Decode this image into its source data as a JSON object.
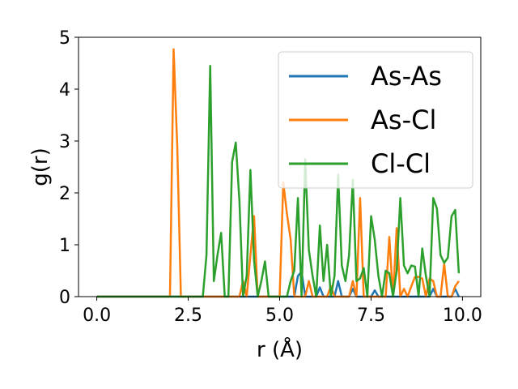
{
  "chart_data": {
    "type": "line",
    "title": "",
    "xlabel": "r (Å)",
    "ylabel": "g(r)",
    "xlim": [
      -0.5,
      10.5
    ],
    "ylim": [
      0,
      5
    ],
    "xticks": [
      "0.0",
      "2.5",
      "5.0",
      "7.5",
      "10.0"
    ],
    "xtick_values": [
      0,
      2.5,
      5,
      7.5,
      10
    ],
    "yticks": [
      "0",
      "1",
      "2",
      "3",
      "4",
      "5"
    ],
    "ytick_values": [
      0,
      1,
      2,
      3,
      4,
      5
    ],
    "grid": false,
    "legend_position": "top-right",
    "series": [
      {
        "name": "As-As",
        "color": "#1f77b4",
        "points": [
          [
            0,
            0
          ],
          [
            5.4,
            0
          ],
          [
            5.5,
            0.4
          ],
          [
            5.6,
            0.48
          ],
          [
            5.7,
            0
          ],
          [
            6.0,
            0
          ],
          [
            6.1,
            0.18
          ],
          [
            6.2,
            0
          ],
          [
            6.5,
            0
          ],
          [
            6.6,
            0.3
          ],
          [
            6.7,
            0
          ],
          [
            6.9,
            0
          ],
          [
            7.0,
            0.15
          ],
          [
            7.1,
            0
          ],
          [
            7.5,
            0
          ],
          [
            7.6,
            0.12
          ],
          [
            7.7,
            0
          ],
          [
            9.1,
            0
          ],
          [
            9.2,
            0.15
          ],
          [
            9.3,
            0
          ],
          [
            9.7,
            0
          ],
          [
            9.8,
            0.15
          ],
          [
            9.9,
            0
          ]
        ]
      },
      {
        "name": "As-Cl",
        "color": "#ff7f0e",
        "points": [
          [
            0,
            0
          ],
          [
            2.0,
            0
          ],
          [
            2.1,
            4.77
          ],
          [
            2.2,
            2.9
          ],
          [
            2.3,
            0
          ],
          [
            3.9,
            0
          ],
          [
            4.0,
            0.3
          ],
          [
            4.1,
            0
          ],
          [
            4.2,
            0.8
          ],
          [
            4.3,
            1.55
          ],
          [
            4.4,
            0
          ],
          [
            5.0,
            0
          ],
          [
            5.1,
            2.2
          ],
          [
            5.2,
            1.6
          ],
          [
            5.3,
            1.1
          ],
          [
            5.4,
            0
          ],
          [
            5.7,
            0
          ],
          [
            5.8,
            0.3
          ],
          [
            5.9,
            0
          ],
          [
            6.3,
            0
          ],
          [
            6.4,
            0.2
          ],
          [
            6.5,
            0
          ],
          [
            6.9,
            0
          ],
          [
            7.0,
            0.3
          ],
          [
            7.1,
            0
          ],
          [
            7.2,
            1.9
          ],
          [
            7.3,
            0
          ],
          [
            7.9,
            0
          ],
          [
            8.0,
            1.15
          ],
          [
            8.1,
            0
          ],
          [
            8.2,
            1.32
          ],
          [
            8.3,
            0
          ],
          [
            8.4,
            0.15
          ],
          [
            8.5,
            0
          ],
          [
            8.6,
            0.2
          ],
          [
            8.7,
            0.38
          ],
          [
            8.8,
            0.38
          ],
          [
            8.9,
            0.35
          ],
          [
            9.0,
            0
          ],
          [
            9.1,
            0.35
          ],
          [
            9.2,
            0.3
          ],
          [
            9.3,
            0
          ],
          [
            9.4,
            0
          ],
          [
            9.5,
            0.63
          ],
          [
            9.6,
            0
          ],
          [
            9.7,
            0
          ],
          [
            9.8,
            0.2
          ],
          [
            9.9,
            0.3
          ]
        ]
      },
      {
        "name": "Cl-Cl",
        "color": "#2ca02c",
        "points": [
          [
            0,
            0
          ],
          [
            2.9,
            0
          ],
          [
            3.0,
            0.8
          ],
          [
            3.1,
            4.45
          ],
          [
            3.2,
            0.3
          ],
          [
            3.3,
            0.8
          ],
          [
            3.4,
            1.23
          ],
          [
            3.5,
            0
          ],
          [
            3.6,
            0
          ],
          [
            3.7,
            2.6
          ],
          [
            3.8,
            2.97
          ],
          [
            3.9,
            1.85
          ],
          [
            4.0,
            0
          ],
          [
            4.1,
            0.4
          ],
          [
            4.2,
            2.44
          ],
          [
            4.3,
            0.7
          ],
          [
            4.4,
            0
          ],
          [
            4.5,
            0.3
          ],
          [
            4.6,
            0.68
          ],
          [
            4.7,
            0
          ],
          [
            5.2,
            0
          ],
          [
            5.3,
            0.3
          ],
          [
            5.4,
            0.5
          ],
          [
            5.5,
            1.9
          ],
          [
            5.6,
            0
          ],
          [
            5.7,
            2.65
          ],
          [
            5.8,
            0.9
          ],
          [
            5.9,
            0.4
          ],
          [
            6.0,
            0
          ],
          [
            6.1,
            1.37
          ],
          [
            6.2,
            0.3
          ],
          [
            6.3,
            1.0
          ],
          [
            6.4,
            0
          ],
          [
            6.5,
            0.4
          ],
          [
            6.6,
            2.35
          ],
          [
            6.7,
            0.6
          ],
          [
            6.8,
            0.3
          ],
          [
            6.9,
            0.8
          ],
          [
            7.0,
            2.25
          ],
          [
            7.1,
            0.3
          ],
          [
            7.2,
            0.35
          ],
          [
            7.3,
            0.55
          ],
          [
            7.4,
            0
          ],
          [
            7.5,
            1.55
          ],
          [
            7.6,
            1.1
          ],
          [
            7.7,
            0.4
          ],
          [
            7.8,
            0
          ],
          [
            7.9,
            0.5
          ],
          [
            8.0,
            0.45
          ],
          [
            8.1,
            0
          ],
          [
            8.2,
            0.5
          ],
          [
            8.3,
            1.9
          ],
          [
            8.4,
            0.6
          ],
          [
            8.5,
            0.45
          ],
          [
            8.6,
            0.6
          ],
          [
            8.7,
            0.58
          ],
          [
            8.8,
            0
          ],
          [
            8.9,
            0.93
          ],
          [
            9.0,
            0.4
          ],
          [
            9.1,
            0
          ],
          [
            9.2,
            1.9
          ],
          [
            9.3,
            1.7
          ],
          [
            9.4,
            0.8
          ],
          [
            9.5,
            0.65
          ],
          [
            9.6,
            0.75
          ],
          [
            9.7,
            1.55
          ],
          [
            9.8,
            1.67
          ],
          [
            9.9,
            0.45
          ]
        ]
      }
    ]
  }
}
